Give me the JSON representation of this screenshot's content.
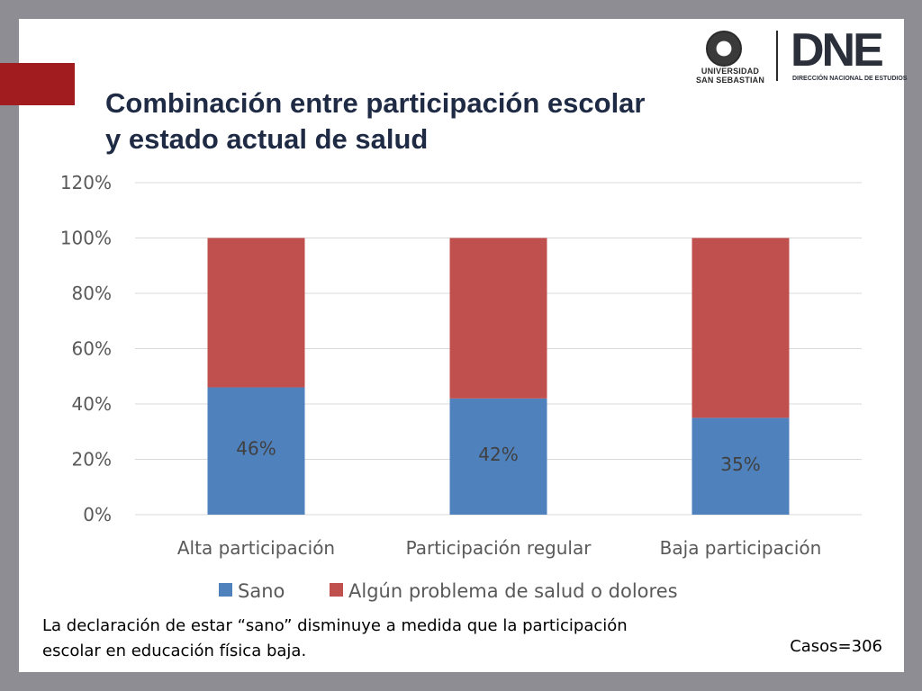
{
  "slide": {
    "title_line1": "Combinación entre participación escolar",
    "title_line2": "y estado actual de salud",
    "note_line1": "La declaración de estar “sano” disminuye a medida que la participación",
    "note_line2": "escolar en educación física baja.",
    "cases": "Casos=306",
    "accent_color": "#a01c1f"
  },
  "logos": {
    "university_line1": "UNIVERSIDAD",
    "university_line2": "SAN SEBASTIAN",
    "dne": "DNE",
    "dne_subtitle": "DIRECCIÓN NACIONAL DE ESTUDIOS"
  },
  "chart_data": {
    "type": "bar",
    "stacked": true,
    "categories": [
      "Alta participación",
      "Participación regular",
      "Baja participación"
    ],
    "series": [
      {
        "name": "Sano",
        "values": [
          46,
          42,
          35
        ],
        "labels": [
          "46%",
          "42%",
          "35%"
        ],
        "color": "#4f81bd"
      },
      {
        "name": "Algún problema de salud o dolores",
        "values": [
          54,
          58,
          65
        ],
        "color": "#c0504d"
      }
    ],
    "ylim": [
      0,
      120
    ],
    "yticks": [
      0,
      20,
      40,
      60,
      80,
      100,
      120
    ],
    "ytick_labels": [
      "0%",
      "20%",
      "40%",
      "60%",
      "80%",
      "100%",
      "120%"
    ],
    "grid": true,
    "legend_position": "bottom"
  }
}
